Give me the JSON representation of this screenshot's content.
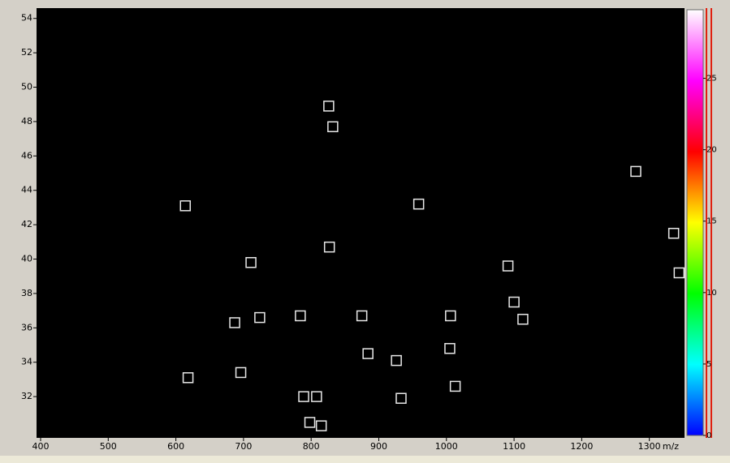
{
  "chart_data": {
    "type": "scatter",
    "x_label": "m/z",
    "xlim": [
      394,
      1352
    ],
    "ylim": [
      29.6,
      54.6
    ],
    "xticks": [
      400,
      500,
      600,
      700,
      800,
      900,
      1000,
      1100,
      1200,
      1300
    ],
    "yticks": [
      32,
      34,
      36,
      38,
      40,
      42,
      44,
      46,
      48,
      50,
      52,
      54
    ],
    "background": "#000000",
    "marker_color": "#e8e8e8",
    "series": [
      {
        "x": [
          826,
          832,
          1280,
          614,
          959,
          1336,
          827,
          711,
          1091,
          1344,
          1100,
          784,
          875,
          1006,
          724,
          1113,
          687,
          884,
          1005,
          926,
          696,
          618,
          1013,
          789,
          808,
          933,
          798,
          815
        ],
        "values": [
          48.9,
          47.7,
          45.1,
          43.1,
          43.2,
          41.5,
          40.7,
          39.8,
          39.6,
          39.2,
          37.5,
          36.7,
          36.7,
          36.7,
          36.6,
          36.5,
          36.3,
          34.5,
          34.8,
          34.1,
          33.4,
          33.1,
          32.6,
          32.0,
          32.0,
          31.9,
          30.5,
          30.3
        ]
      }
    ],
    "colorbar": {
      "lim": [
        0,
        29.8
      ],
      "ticks": [
        0,
        5,
        10,
        15,
        20,
        25
      ],
      "colors": [
        "#0000ff",
        "#00ffff",
        "#00ff00",
        "#ffff00",
        "#ff0000",
        "#ff00ff",
        "#ffffff"
      ]
    }
  }
}
